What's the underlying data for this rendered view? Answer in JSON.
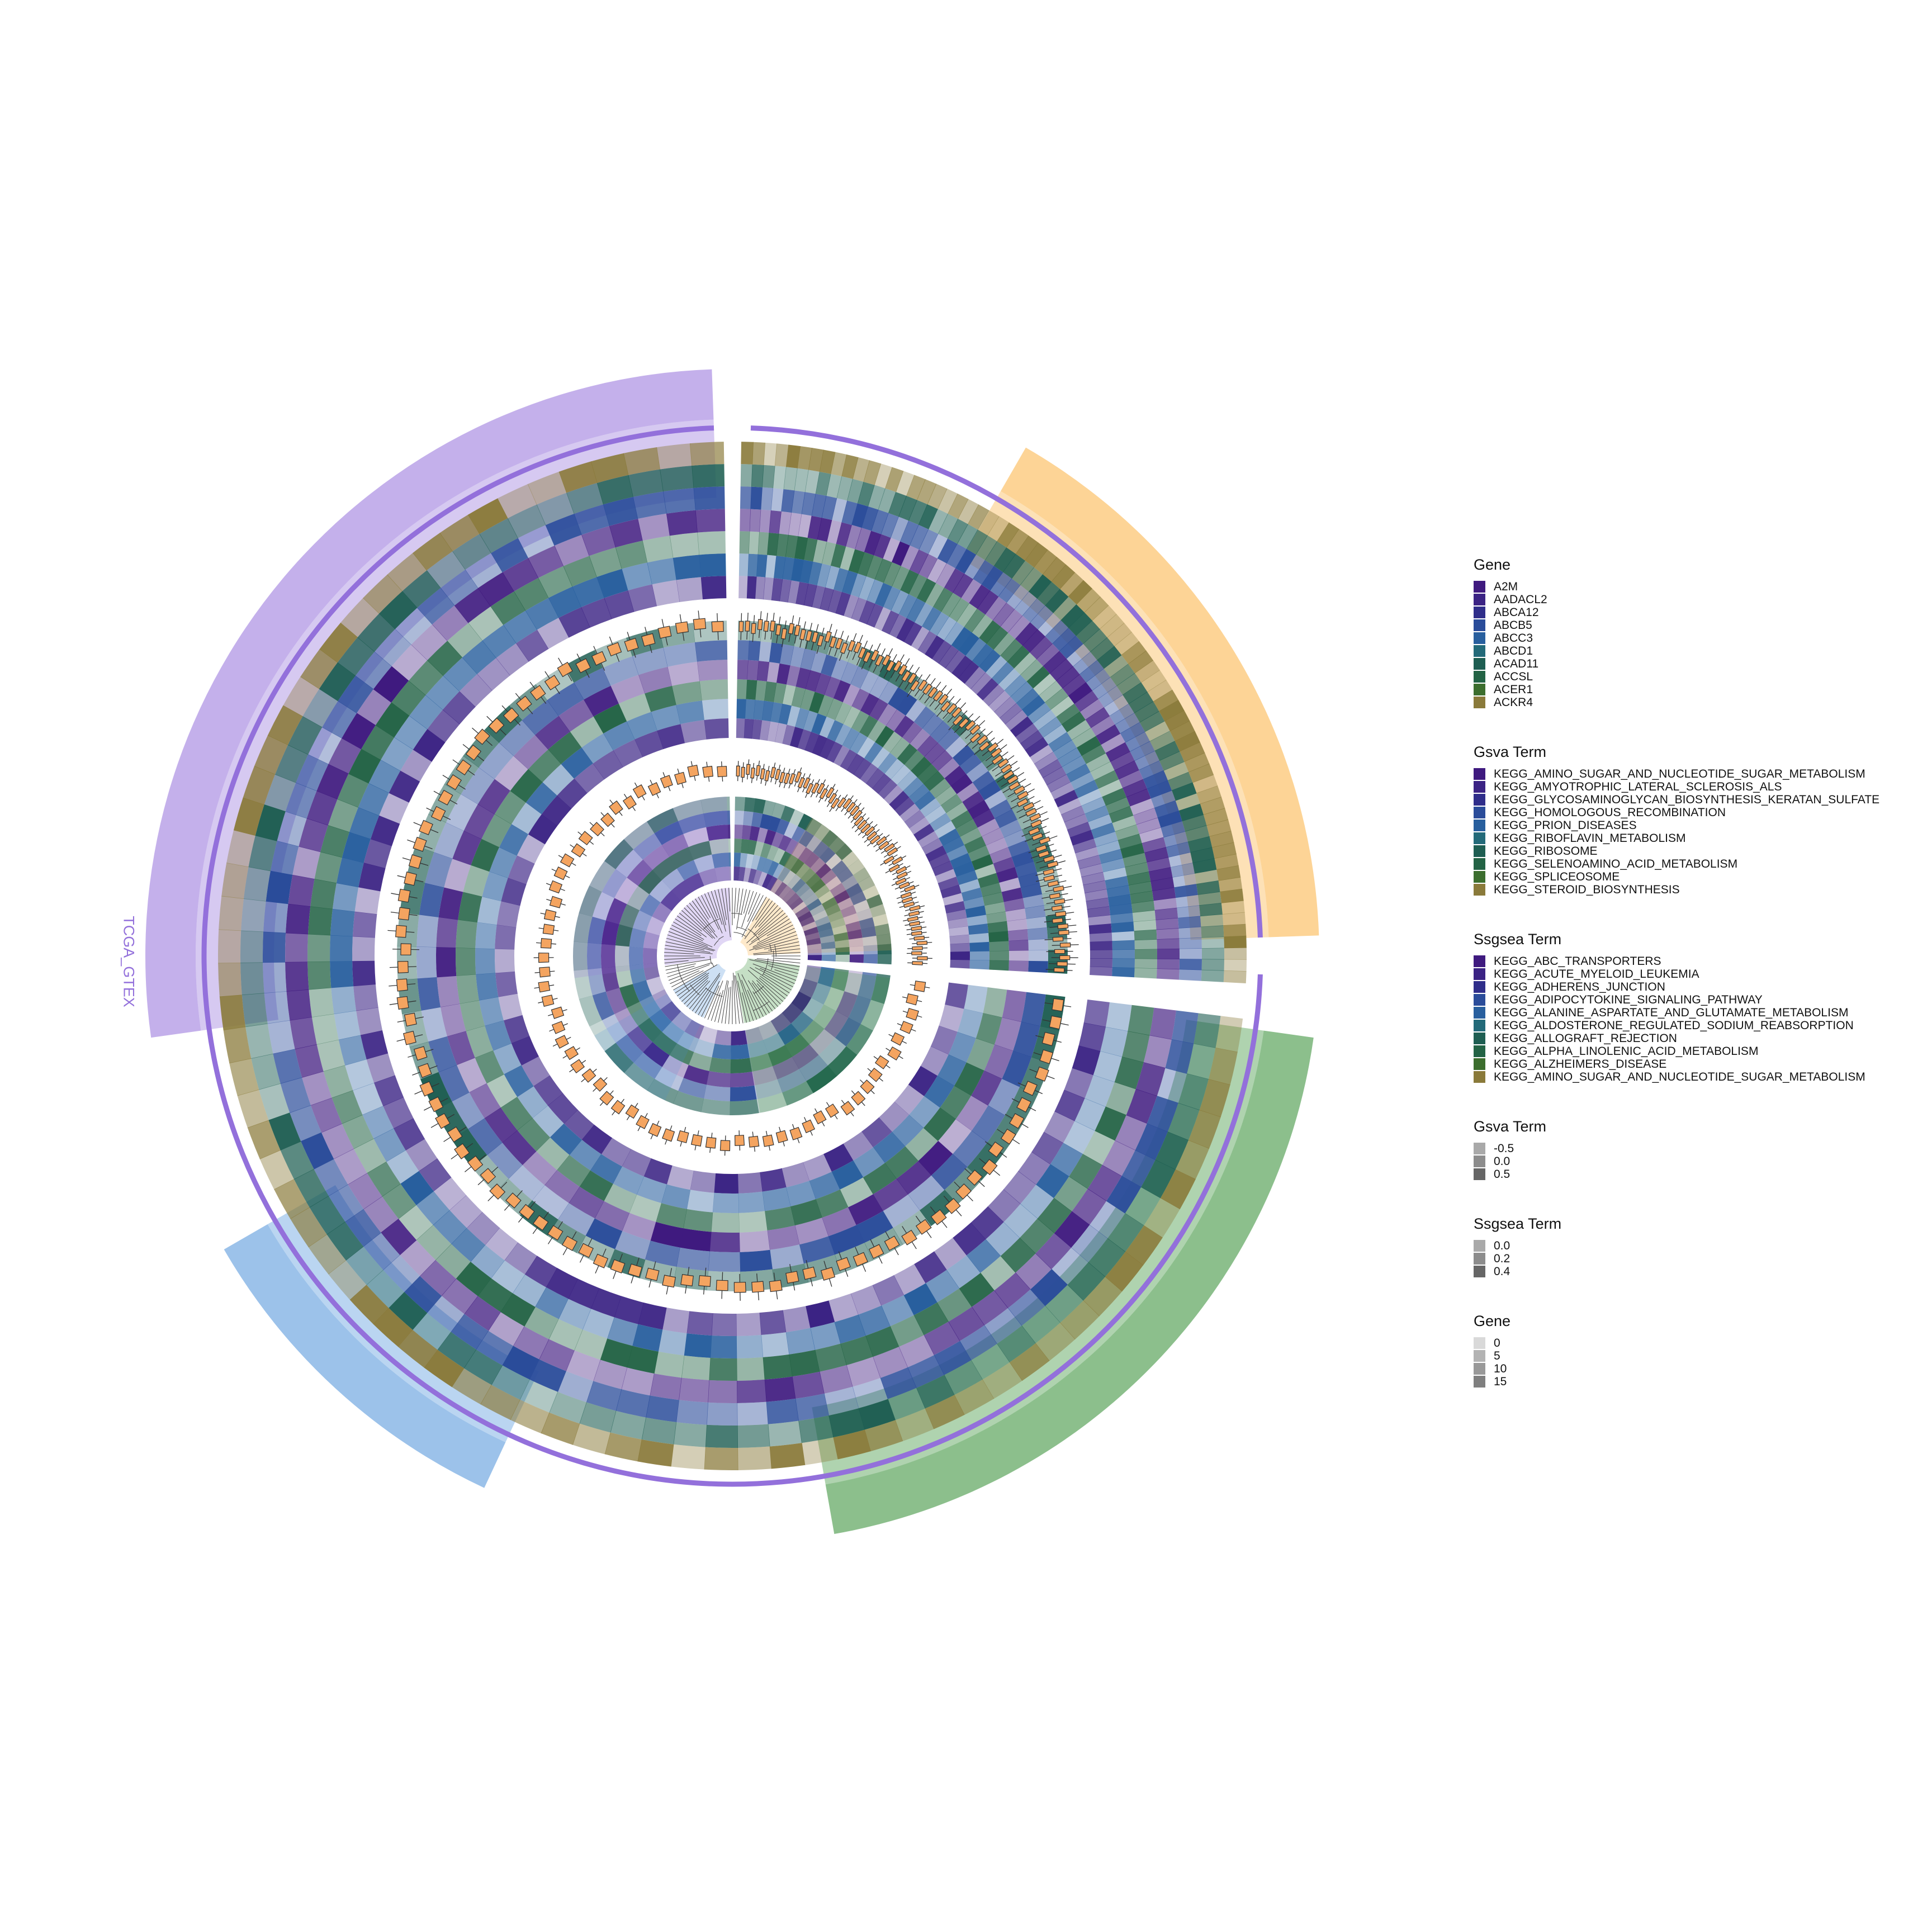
{
  "chart_data": {
    "type": "heatmap",
    "layout": "circular",
    "track_label": "TCGA_GTEX",
    "track_label_color": "#9370DB",
    "groups": [
      {
        "color": "#9370DB"
      },
      {
        "color": "#FBB040"
      },
      {
        "color": "#2E8B2E"
      },
      {
        "color": "#4A90D9"
      }
    ],
    "legends": [
      {
        "title": "Gene",
        "items": [
          {
            "label": "A2M",
            "color": "#3F1A7F"
          },
          {
            "label": "AADACL2",
            "color": "#3B2384"
          },
          {
            "label": "ABCA12",
            "color": "#2F2D8A"
          },
          {
            "label": "ABCB5",
            "color": "#2A4C9A"
          },
          {
            "label": "ABCC3",
            "color": "#285F9E"
          },
          {
            "label": "ABCD1",
            "color": "#236A79"
          },
          {
            "label": "ACAD11",
            "color": "#1E5E52"
          },
          {
            "label": "ACCSL",
            "color": "#236345"
          },
          {
            "label": "ACER1",
            "color": "#3C6E2E"
          },
          {
            "label": "ACKR4",
            "color": "#8A7A3A"
          }
        ]
      },
      {
        "title": "Gsva Term",
        "items": [
          {
            "label": "KEGG_AMINO_SUGAR_AND_NUCLEOTIDE_SUGAR_METABOLISM",
            "color": "#3F1A7F"
          },
          {
            "label": "KEGG_AMYOTROPHIC_LATERAL_SCLEROSIS_ALS",
            "color": "#3B2384"
          },
          {
            "label": "KEGG_GLYCOSAMINOGLYCAN_BIOSYNTHESIS_KERATAN_SULFATE",
            "color": "#2F2D8A"
          },
          {
            "label": "KEGG_HOMOLOGOUS_RECOMBINATION",
            "color": "#2A4C9A"
          },
          {
            "label": "KEGG_PRION_DISEASES",
            "color": "#285F9E"
          },
          {
            "label": "KEGG_RIBOFLAVIN_METABOLISM",
            "color": "#236A79"
          },
          {
            "label": "KEGG_RIBOSOME",
            "color": "#1E5E52"
          },
          {
            "label": "KEGG_SELENOAMINO_ACID_METABOLISM",
            "color": "#236345"
          },
          {
            "label": "KEGG_SPLICEOSOME",
            "color": "#3C6E2E"
          },
          {
            "label": "KEGG_STEROID_BIOSYNTHESIS",
            "color": "#8A7A3A"
          }
        ]
      },
      {
        "title": "Ssgsea Term",
        "items": [
          {
            "label": "KEGG_ABC_TRANSPORTERS",
            "color": "#3F1A7F"
          },
          {
            "label": "KEGG_ACUTE_MYELOID_LEUKEMIA",
            "color": "#3B2384"
          },
          {
            "label": "KEGG_ADHERENS_JUNCTION",
            "color": "#2F2D8A"
          },
          {
            "label": "KEGG_ADIPOCYTOKINE_SIGNALING_PATHWAY",
            "color": "#2A4C9A"
          },
          {
            "label": "KEGG_ALANINE_ASPARTATE_AND_GLUTAMATE_METABOLISM",
            "color": "#285F9E"
          },
          {
            "label": "KEGG_ALDOSTERONE_REGULATED_SODIUM_REABSORPTION",
            "color": "#236A79"
          },
          {
            "label": "KEGG_ALLOGRAFT_REJECTION",
            "color": "#1E5E52"
          },
          {
            "label": "KEGG_ALPHA_LINOLENIC_ACID_METABOLISM",
            "color": "#236345"
          },
          {
            "label": "KEGG_ALZHEIMERS_DISEASE",
            "color": "#3C6E2E"
          },
          {
            "label": "KEGG_AMINO_SUGAR_AND_NUCLEOTIDE_SUGAR_METABOLISM",
            "color": "#8A7A3A"
          }
        ]
      },
      {
        "title": "Gsva Term",
        "items": [
          {
            "label": "-0.5",
            "color": "#A9A9A9"
          },
          {
            "label": "0.0",
            "color": "#8C8C8C"
          },
          {
            "label": "0.5",
            "color": "#666666"
          }
        ]
      },
      {
        "title": "Ssgsea Term",
        "items": [
          {
            "label": "0.0",
            "color": "#A9A9A9"
          },
          {
            "label": "0.2",
            "color": "#8C8C8C"
          },
          {
            "label": "0.4",
            "color": "#666666"
          }
        ]
      },
      {
        "title": "Gene",
        "items": [
          {
            "label": "0",
            "color": "#D9D9D9"
          },
          {
            "label": "5",
            "color": "#B3B3B3"
          },
          {
            "label": "10",
            "color": "#999999"
          },
          {
            "label": "15",
            "color": "#7F7F7F"
          }
        ]
      }
    ]
  }
}
